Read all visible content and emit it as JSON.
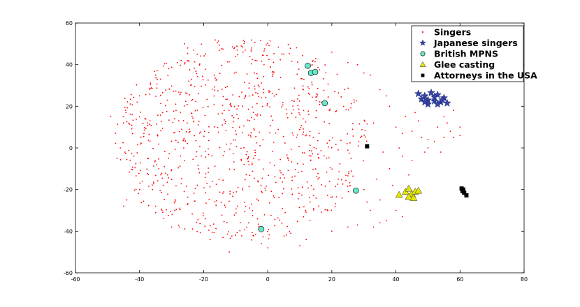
{
  "chart_data": {
    "type": "scatter",
    "xlim": [
      -60,
      80
    ],
    "ylim": [
      -60,
      60
    ],
    "xticks": [
      -60,
      -40,
      -20,
      0,
      20,
      40,
      60,
      80
    ],
    "yticks": [
      -60,
      -40,
      -20,
      0,
      20,
      40,
      60
    ],
    "grid": false,
    "legend_position": "top-right",
    "series": [
      {
        "name": "Singers",
        "marker": "dot",
        "color": "#ff0000",
        "cloud": {
          "count": 900,
          "center": [
            -8,
            4
          ],
          "radius": [
            40,
            49
          ],
          "seed": 7
        },
        "points": [
          [
            -49,
            15
          ],
          [
            -47,
            -5
          ],
          [
            -45,
            -28
          ],
          [
            -44,
            -25
          ],
          [
            -35,
            -28
          ],
          [
            -33,
            -30
          ],
          [
            -26,
            50
          ],
          [
            -25,
            48
          ],
          [
            -12,
            -50
          ],
          [
            -7,
            47
          ],
          [
            -5,
            48
          ],
          [
            0,
            -48
          ],
          [
            10,
            -47
          ],
          [
            20,
            46
          ],
          [
            25,
            41
          ],
          [
            28,
            40
          ],
          [
            30,
            36
          ],
          [
            32,
            35
          ],
          [
            35,
            28
          ],
          [
            37,
            25
          ],
          [
            38,
            20
          ],
          [
            40,
            10
          ],
          [
            42,
            7
          ],
          [
            45,
            8
          ],
          [
            48,
            5
          ],
          [
            50,
            4
          ],
          [
            52,
            3
          ],
          [
            55,
            5
          ],
          [
            57,
            8
          ],
          [
            58,
            5
          ],
          [
            60,
            6
          ],
          [
            60,
            10
          ],
          [
            55,
            15
          ],
          [
            53,
            10
          ],
          [
            49,
            -2
          ],
          [
            45,
            -6
          ],
          [
            42,
            -4
          ],
          [
            38,
            -10
          ],
          [
            40,
            -30
          ],
          [
            42,
            -33
          ],
          [
            37,
            -35
          ],
          [
            35,
            -36
          ],
          [
            33,
            -38
          ],
          [
            28,
            -37
          ],
          [
            25,
            -38
          ],
          [
            32,
            -30
          ],
          [
            30,
            -20
          ],
          [
            34,
            -15
          ],
          [
            36,
            -2
          ],
          [
            41,
            0
          ],
          [
            43,
            15
          ],
          [
            47,
            13
          ],
          [
            56,
            12
          ],
          [
            22,
            -15
          ],
          [
            26,
            -5
          ],
          [
            29,
            5
          ],
          [
            33,
            12
          ],
          [
            31,
            -26
          ],
          [
            24,
            28
          ],
          [
            27,
            22
          ],
          [
            35,
            -25
          ],
          [
            39,
            -18
          ],
          [
            44,
            -13
          ],
          [
            50,
            0
          ],
          [
            46,
            17
          ],
          [
            58,
            18
          ],
          [
            54,
            -2
          ],
          [
            20,
            -40
          ],
          [
            12,
            -44
          ],
          [
            -2,
            -46
          ],
          [
            -18,
            -44
          ],
          [
            -30,
            -38
          ],
          [
            -40,
            -20
          ],
          [
            -46,
            0
          ],
          [
            -45,
            12
          ],
          [
            -40,
            25
          ],
          [
            -35,
            35
          ],
          [
            -22,
            45
          ],
          [
            -10,
            44
          ],
          [
            5,
            45
          ],
          [
            15,
            43
          ]
        ]
      },
      {
        "name": "Japanese singers",
        "marker": "star",
        "color": "#3344aa",
        "points": [
          [
            47,
            26
          ],
          [
            49,
            25
          ],
          [
            51,
            26.5
          ],
          [
            53,
            25.5
          ],
          [
            55,
            24
          ],
          [
            50,
            23
          ],
          [
            52,
            22.5
          ],
          [
            54,
            22
          ],
          [
            48,
            23.5
          ],
          [
            50,
            21
          ],
          [
            53,
            21
          ],
          [
            56,
            21.5
          ],
          [
            52,
            24.5
          ],
          [
            54.5,
            23
          ],
          [
            49,
            22
          ]
        ]
      },
      {
        "name": "British MPNS",
        "marker": "circle",
        "color": "#66e8c8",
        "points": [
          [
            12.5,
            39.5
          ],
          [
            13.5,
            36
          ],
          [
            14.8,
            36.5
          ],
          [
            17.8,
            21.5
          ],
          [
            27.5,
            -20.5
          ],
          [
            -2,
            -39
          ]
        ]
      },
      {
        "name": "Glee casting",
        "marker": "triangle",
        "color": "#e6e600",
        "points": [
          [
            41,
            -22.5
          ],
          [
            43,
            -21
          ],
          [
            44,
            -19.5
          ],
          [
            45,
            -22
          ],
          [
            46,
            -21
          ],
          [
            47,
            -20.5
          ],
          [
            44,
            -23.5
          ],
          [
            45.5,
            -24
          ]
        ]
      },
      {
        "name": "Attorneys in the USA",
        "marker": "square",
        "color": "#000000",
        "points": [
          [
            31,
            0.8
          ],
          [
            60.5,
            -19.5
          ],
          [
            61,
            -20
          ],
          [
            61.3,
            -21.5
          ],
          [
            62,
            -22.8
          ],
          [
            60.8,
            -20.8
          ]
        ]
      }
    ]
  }
}
